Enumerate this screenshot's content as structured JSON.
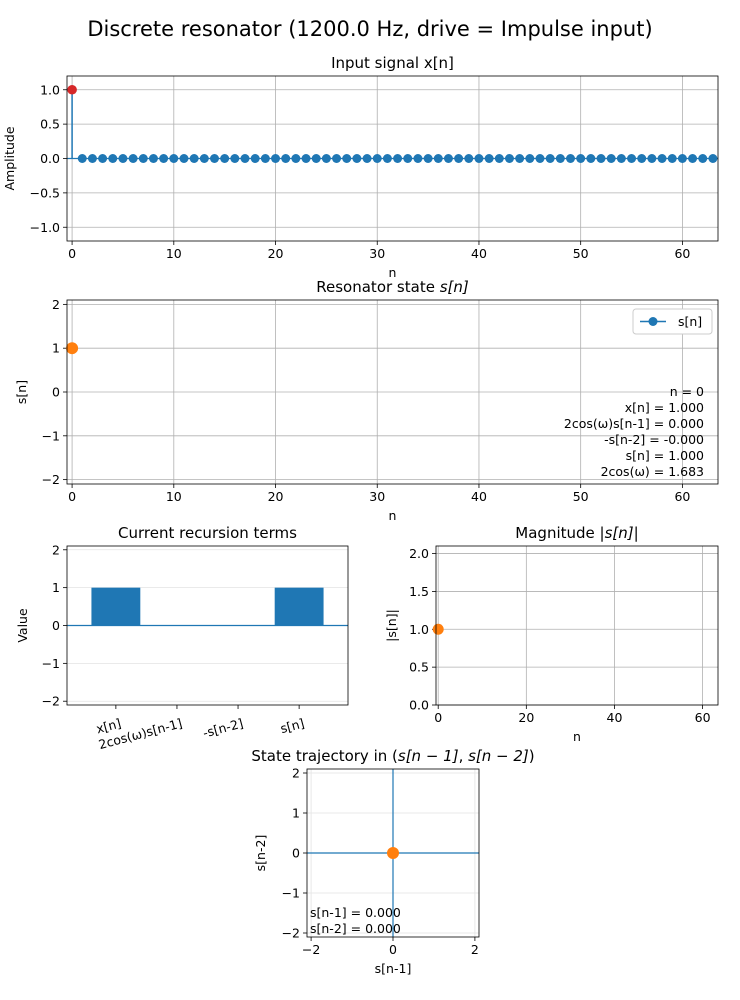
{
  "figure": {
    "suptitle": "Discrete resonator (1200.0 Hz, drive = Impulse input)"
  },
  "colors": {
    "blue": "#1f77b4",
    "orange": "#ff7f0e",
    "red": "#d62728",
    "grid": "#b0b0b0"
  },
  "chart_data": [
    {
      "id": "input",
      "type": "stem",
      "title": "Input signal x[n]",
      "xlabel": "n",
      "ylabel": "Amplitude",
      "xlim": [
        -0.5,
        63.5
      ],
      "ylim": [
        -1.2,
        1.2
      ],
      "xticks": [
        "0",
        "10",
        "20",
        "30",
        "40",
        "50",
        "60"
      ],
      "yticks": [
        "−1.0",
        "−0.5",
        "0.0",
        "0.5",
        "1.0"
      ],
      "grid": true,
      "x_range": [
        0,
        63
      ],
      "values": "x[0] = 1, x[n] = 0 for n = 1..63",
      "highlight": {
        "x": 0,
        "y": 1.0
      }
    },
    {
      "id": "state",
      "type": "line",
      "title": "Resonator state s[n]",
      "xlabel": "n",
      "ylabel": "s[n]",
      "xlim": [
        -0.5,
        63.5
      ],
      "ylim": [
        -2.1,
        2.1
      ],
      "xticks": [
        "0",
        "10",
        "20",
        "30",
        "40",
        "50",
        "60"
      ],
      "yticks": [
        "−2",
        "−1",
        "0",
        "1",
        "2"
      ],
      "grid": true,
      "legend": {
        "label": "s[n]",
        "location": "top-right"
      },
      "series": [
        {
          "name": "s[n]",
          "x": [
            0
          ],
          "y": [
            1.0
          ]
        }
      ],
      "highlight": {
        "x": 0,
        "y": 1.0
      },
      "annotation": [
        "n = 0",
        "x[n] = 1.000",
        "2cos(ω)s[n-1] = 0.000",
        "-s[n-2] = -0.000",
        "s[n] = 1.000",
        "2cos(ω) = 1.683"
      ]
    },
    {
      "id": "terms",
      "type": "bar",
      "title": "Current recursion terms",
      "ylabel": "Value",
      "ylim": [
        -2.1,
        2.1
      ],
      "yticks": [
        "−2",
        "−1",
        "0",
        "1",
        "2"
      ],
      "categories": [
        "x[n]",
        "2cos(ω)s[n-1]",
        "-s[n-2]",
        "s[n]"
      ],
      "values": [
        1.0,
        0.0,
        0.0,
        1.0
      ],
      "grid": "y"
    },
    {
      "id": "magnitude",
      "type": "line",
      "title": "Magnitude |s[n]|",
      "xlabel": "n",
      "ylabel": "|s[n]|",
      "xlim": [
        -0.5,
        63.5
      ],
      "ylim": [
        0,
        2.1
      ],
      "xticks": [
        "0",
        "20",
        "40",
        "60"
      ],
      "yticks": [
        "0.0",
        "0.5",
        "1.0",
        "1.5",
        "2.0"
      ],
      "grid": true,
      "series": [
        {
          "x": [
            0
          ],
          "y": [
            1.0
          ]
        }
      ]
    },
    {
      "id": "trajectory",
      "type": "scatter",
      "title": "State trajectory in (s[n − 1], s[n − 2])",
      "xlabel": "s[n-1]",
      "ylabel": "s[n-2]",
      "xlim": [
        -2.1,
        2.1
      ],
      "ylim": [
        -2.1,
        2.1
      ],
      "xticks": [
        "−2",
        "0",
        "2"
      ],
      "yticks": [
        "−2",
        "−1",
        "0",
        "1",
        "2"
      ],
      "grid": true,
      "point": {
        "x": 0.0,
        "y": 0.0
      },
      "annotation": [
        "s[n-1] = 0.000",
        "s[n-2] = 0.000"
      ]
    }
  ]
}
